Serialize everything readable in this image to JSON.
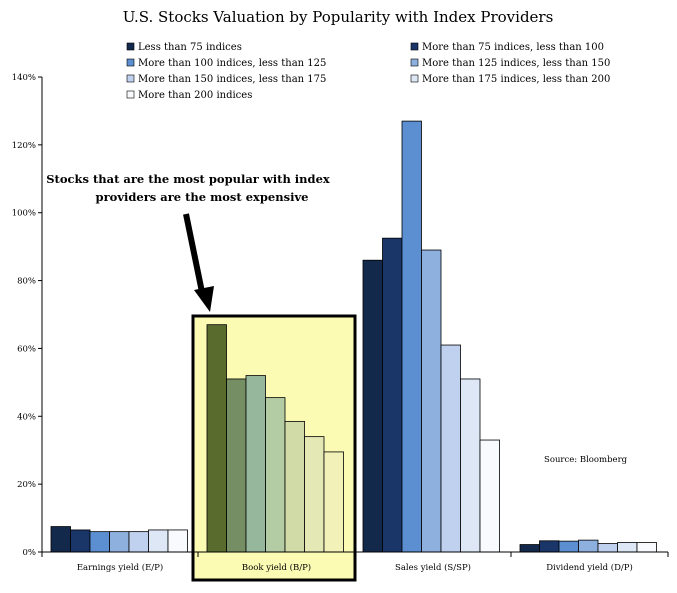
{
  "chart_data": {
    "type": "bar",
    "title": "U.S. Stocks Valuation by Popularity with Index Providers",
    "xlabel": "",
    "ylabel": "",
    "ylim": [
      0,
      140
    ],
    "y_ticks": [
      "0%",
      "20%",
      "40%",
      "60%",
      "80%",
      "100%",
      "120%",
      "140%"
    ],
    "grid": false,
    "legend_position": "top",
    "categories": [
      "Earnings yield (E/P)",
      "Book yield (B/P)",
      "Sales yield (S/SP)",
      "Dividend yield (D/P)"
    ],
    "series": [
      {
        "name": "Less than 75 indices",
        "values": [
          7.5,
          67,
          86,
          2.2
        ]
      },
      {
        "name": "More than 75 indices, less than 100",
        "values": [
          6.5,
          51,
          92.5,
          3.3
        ]
      },
      {
        "name": "More than 100 indices, less than 125",
        "values": [
          6,
          52,
          127,
          3.2
        ]
      },
      {
        "name": "More than 125 indices, less than 150",
        "values": [
          6,
          45.5,
          89,
          3.5
        ]
      },
      {
        "name": "More than 150 indices, less than 175",
        "values": [
          6,
          38.5,
          61,
          2.5
        ]
      },
      {
        "name": "More than 175 indices, less than 200",
        "values": [
          6.5,
          34,
          51,
          2.8
        ]
      },
      {
        "name": "More than 200 indices",
        "values": [
          6.5,
          29.5,
          33,
          2.8
        ]
      }
    ],
    "highlighted_category": "Book yield (B/P)",
    "annotation": {
      "line1": "Stocks that are the most popular with index",
      "line2": "providers are the most expensive"
    },
    "source": "Source: Bloomberg",
    "colors": {
      "default": [
        "#13294b",
        "#1a3568",
        "#5b8fd1",
        "#8eb0df",
        "#bfd1ee",
        "#dde7f6",
        "#f8fafd"
      ],
      "highlighted": [
        "#5a6b2e",
        "#758e63",
        "#96b79c",
        "#b4cca4",
        "#d0dba7",
        "#e3e8b4",
        "#f2f1b8"
      ],
      "highlight_box": "#fcfbb4"
    }
  }
}
